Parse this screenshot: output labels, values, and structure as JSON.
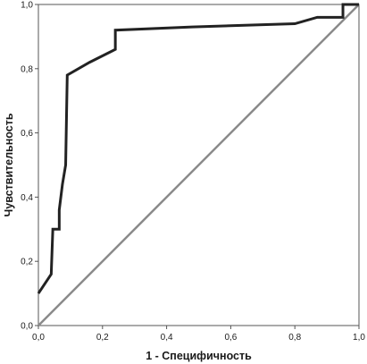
{
  "chart_data": {
    "type": "line",
    "xlabel": "1 - Специфичность",
    "ylabel": "Чувствительность",
    "xlim": [
      0,
      1
    ],
    "ylim": [
      0,
      1
    ],
    "x_ticks": [
      "0,0",
      "0,2",
      "0,4",
      "0,6",
      "0,8",
      "1,0"
    ],
    "y_ticks": [
      "0,0",
      "0,2",
      "0,4",
      "0,6",
      "0,8",
      "1,0"
    ],
    "grid": false,
    "legend": "none",
    "series": [
      {
        "color": "#222222",
        "points": [
          [
            0.0,
            0.1
          ],
          [
            0.04,
            0.16
          ],
          [
            0.045,
            0.3
          ],
          [
            0.065,
            0.3
          ],
          [
            0.065,
            0.36
          ],
          [
            0.075,
            0.44
          ],
          [
            0.085,
            0.5
          ],
          [
            0.09,
            0.78
          ],
          [
            0.16,
            0.82
          ],
          [
            0.24,
            0.86
          ],
          [
            0.24,
            0.92
          ],
          [
            0.48,
            0.93
          ],
          [
            0.8,
            0.94
          ],
          [
            0.87,
            0.96
          ],
          [
            0.95,
            0.96
          ],
          [
            0.95,
            1.0
          ],
          [
            1.0,
            1.0
          ]
        ]
      },
      {
        "color": "#8a8a8a",
        "points": [
          [
            0,
            0
          ],
          [
            1,
            1
          ]
        ]
      }
    ]
  }
}
